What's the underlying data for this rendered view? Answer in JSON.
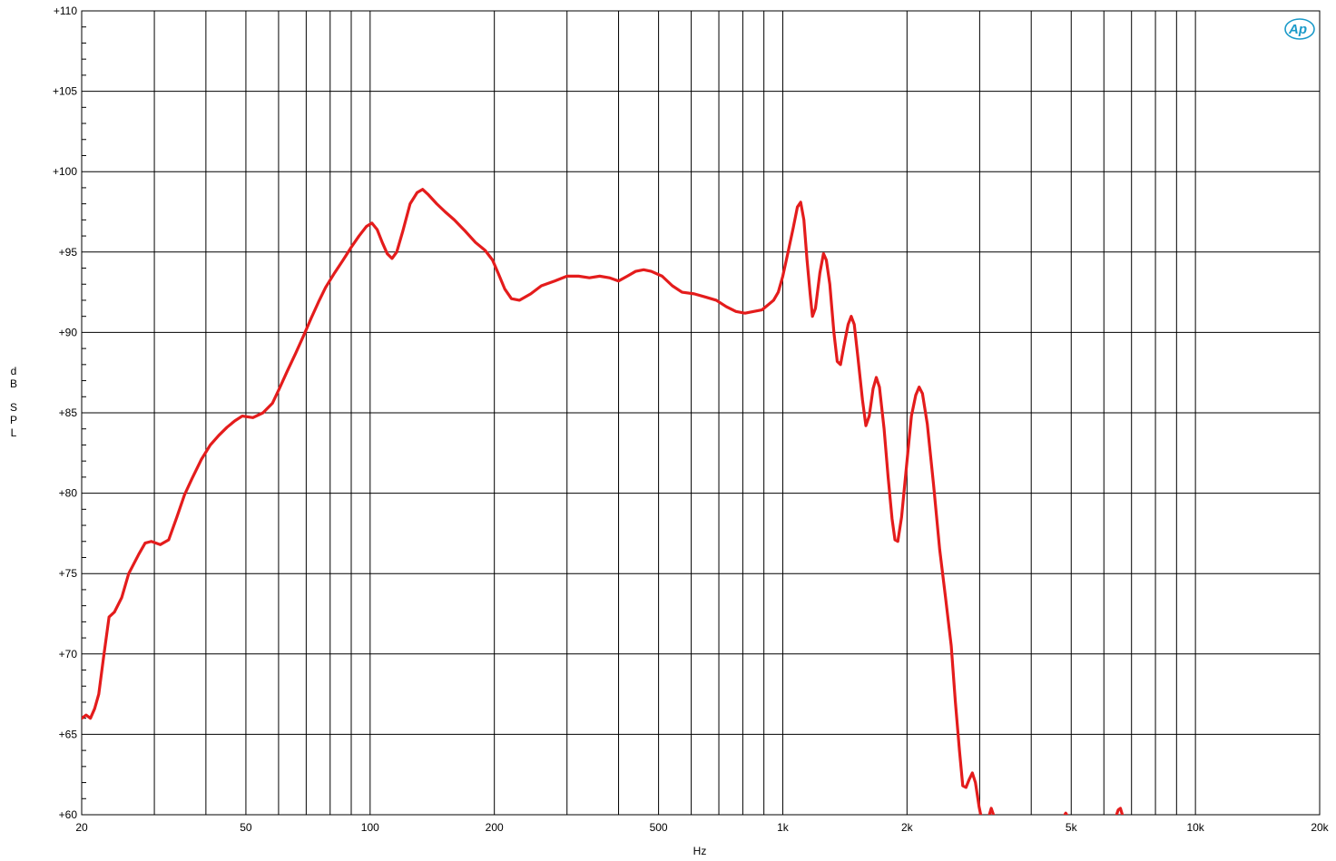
{
  "chart_data": {
    "type": "line",
    "title": "",
    "xlabel": "Hz",
    "ylabel": "dB SPL",
    "x_scale": "log",
    "xlim": [
      20,
      20000
    ],
    "ylim": [
      60,
      110
    ],
    "grid": true,
    "x_ticks": [
      {
        "value": 20,
        "label": "20"
      },
      {
        "value": 50,
        "label": "50"
      },
      {
        "value": 100,
        "label": "100"
      },
      {
        "value": 200,
        "label": "200"
      },
      {
        "value": 500,
        "label": "500"
      },
      {
        "value": 1000,
        "label": "1k"
      },
      {
        "value": 2000,
        "label": "2k"
      },
      {
        "value": 5000,
        "label": "5k"
      },
      {
        "value": 10000,
        "label": "10k"
      },
      {
        "value": 20000,
        "label": "20k"
      }
    ],
    "x_grid": [
      20,
      30,
      40,
      50,
      60,
      70,
      80,
      90,
      100,
      200,
      300,
      400,
      500,
      600,
      700,
      800,
      900,
      1000,
      2000,
      3000,
      4000,
      5000,
      6000,
      7000,
      8000,
      9000,
      10000,
      20000
    ],
    "y_ticks": [
      {
        "value": 60,
        "label": "+60"
      },
      {
        "value": 65,
        "label": "+65"
      },
      {
        "value": 70,
        "label": "+70"
      },
      {
        "value": 75,
        "label": "+75"
      },
      {
        "value": 80,
        "label": "+80"
      },
      {
        "value": 85,
        "label": "+85"
      },
      {
        "value": 90,
        "label": "+90"
      },
      {
        "value": 95,
        "label": "+95"
      },
      {
        "value": 100,
        "label": "+100"
      },
      {
        "value": 105,
        "label": "+105"
      },
      {
        "value": 110,
        "label": "+110"
      }
    ],
    "logo_text": "Ap",
    "series": [
      {
        "color": "#e41c1c",
        "segments": [
          [
            [
              20,
              66.0
            ],
            [
              20.5,
              66.2
            ],
            [
              21,
              66.0
            ],
            [
              21.5,
              66.6
            ],
            [
              22,
              67.5
            ],
            [
              22.6,
              69.8
            ],
            [
              23.3,
              72.3
            ],
            [
              24,
              72.6
            ],
            [
              25,
              73.5
            ],
            [
              26,
              75.0
            ],
            [
              27.5,
              76.2
            ],
            [
              28.5,
              76.9
            ],
            [
              29.5,
              77.0
            ],
            [
              31,
              76.8
            ],
            [
              32.5,
              77.1
            ],
            [
              34,
              78.5
            ],
            [
              35.5,
              79.9
            ],
            [
              37,
              80.9
            ],
            [
              39,
              82.1
            ],
            [
              41,
              83.0
            ],
            [
              43,
              83.6
            ],
            [
              45,
              84.1
            ],
            [
              47,
              84.5
            ],
            [
              49,
              84.8
            ],
            [
              52,
              84.7
            ],
            [
              55,
              85.0
            ],
            [
              58,
              85.6
            ],
            [
              60,
              86.4
            ],
            [
              63,
              87.6
            ],
            [
              66,
              88.7
            ],
            [
              69,
              89.8
            ],
            [
              72,
              90.9
            ],
            [
              75,
              91.9
            ],
            [
              78,
              92.8
            ],
            [
              82,
              93.7
            ],
            [
              86,
              94.5
            ],
            [
              90,
              95.3
            ],
            [
              94,
              96.0
            ],
            [
              98,
              96.6
            ],
            [
              101,
              96.8
            ],
            [
              104,
              96.4
            ],
            [
              107,
              95.6
            ],
            [
              110,
              94.9
            ],
            [
              113,
              94.6
            ],
            [
              116,
              95.0
            ],
            [
              120,
              96.3
            ],
            [
              125,
              98.0
            ],
            [
              130,
              98.7
            ],
            [
              134,
              98.9
            ],
            [
              138,
              98.6
            ],
            [
              145,
              98.0
            ],
            [
              152,
              97.5
            ],
            [
              160,
              97.0
            ],
            [
              170,
              96.3
            ],
            [
              180,
              95.6
            ],
            [
              190,
              95.1
            ],
            [
              198,
              94.5
            ],
            [
              205,
              93.6
            ],
            [
              212,
              92.7
            ],
            [
              220,
              92.1
            ],
            [
              230,
              92.0
            ],
            [
              245,
              92.4
            ],
            [
              260,
              92.9
            ],
            [
              280,
              93.2
            ],
            [
              300,
              93.5
            ],
            [
              320,
              93.5
            ],
            [
              340,
              93.4
            ],
            [
              360,
              93.5
            ],
            [
              380,
              93.4
            ],
            [
              400,
              93.2
            ],
            [
              420,
              93.5
            ],
            [
              440,
              93.8
            ],
            [
              460,
              93.9
            ],
            [
              480,
              93.8
            ],
            [
              510,
              93.5
            ],
            [
              540,
              92.9
            ],
            [
              570,
              92.5
            ],
            [
              610,
              92.4
            ],
            [
              650,
              92.2
            ],
            [
              690,
              92.0
            ],
            [
              730,
              91.6
            ],
            [
              770,
              91.3
            ],
            [
              810,
              91.2
            ],
            [
              850,
              91.3
            ],
            [
              890,
              91.4
            ],
            [
              920,
              91.7
            ],
            [
              950,
              92.0
            ],
            [
              975,
              92.5
            ],
            [
              1000,
              93.5
            ],
            [
              1030,
              95.0
            ],
            [
              1060,
              96.5
            ],
            [
              1085,
              97.8
            ],
            [
              1105,
              98.1
            ],
            [
              1125,
              97.0
            ],
            [
              1145,
              94.5
            ],
            [
              1165,
              92.4
            ],
            [
              1180,
              91.0
            ],
            [
              1200,
              91.5
            ],
            [
              1230,
              93.7
            ],
            [
              1255,
              94.9
            ],
            [
              1275,
              94.5
            ],
            [
              1300,
              93.0
            ],
            [
              1330,
              90.0
            ],
            [
              1355,
              88.2
            ],
            [
              1380,
              88.0
            ],
            [
              1410,
              89.3
            ],
            [
              1440,
              90.5
            ],
            [
              1465,
              91.0
            ],
            [
              1490,
              90.5
            ],
            [
              1520,
              88.5
            ],
            [
              1560,
              85.8
            ],
            [
              1590,
              84.2
            ],
            [
              1620,
              84.8
            ],
            [
              1655,
              86.5
            ],
            [
              1685,
              87.2
            ],
            [
              1715,
              86.6
            ],
            [
              1760,
              84.0
            ],
            [
              1800,
              81.0
            ],
            [
              1840,
              78.4
            ],
            [
              1870,
              77.1
            ],
            [
              1900,
              77.0
            ],
            [
              1940,
              78.5
            ],
            [
              2000,
              82.0
            ],
            [
              2050,
              84.8
            ],
            [
              2100,
              86.1
            ],
            [
              2140,
              86.6
            ],
            [
              2180,
              86.2
            ],
            [
              2240,
              84.3
            ],
            [
              2320,
              80.5
            ],
            [
              2400,
              76.5
            ],
            [
              2480,
              73.5
            ],
            [
              2560,
              70.5
            ],
            [
              2620,
              67.0
            ],
            [
              2680,
              64.0
            ],
            [
              2730,
              61.8
            ],
            [
              2780,
              61.7
            ],
            [
              2830,
              62.2
            ],
            [
              2880,
              62.6
            ],
            [
              2930,
              62.0
            ],
            [
              2990,
              60.5
            ],
            [
              3040,
              59.6
            ]
          ],
          [
            [
              3150,
              59.8
            ],
            [
              3200,
              60.4
            ],
            [
              3250,
              59.9
            ]
          ],
          [
            [
              4800,
              59.9
            ],
            [
              4850,
              60.1
            ],
            [
              4900,
              59.9
            ]
          ],
          [
            [
              6400,
              59.8
            ],
            [
              6500,
              60.3
            ],
            [
              6580,
              60.4
            ],
            [
              6650,
              60.0
            ],
            [
              6720,
              59.7
            ]
          ]
        ]
      }
    ]
  }
}
